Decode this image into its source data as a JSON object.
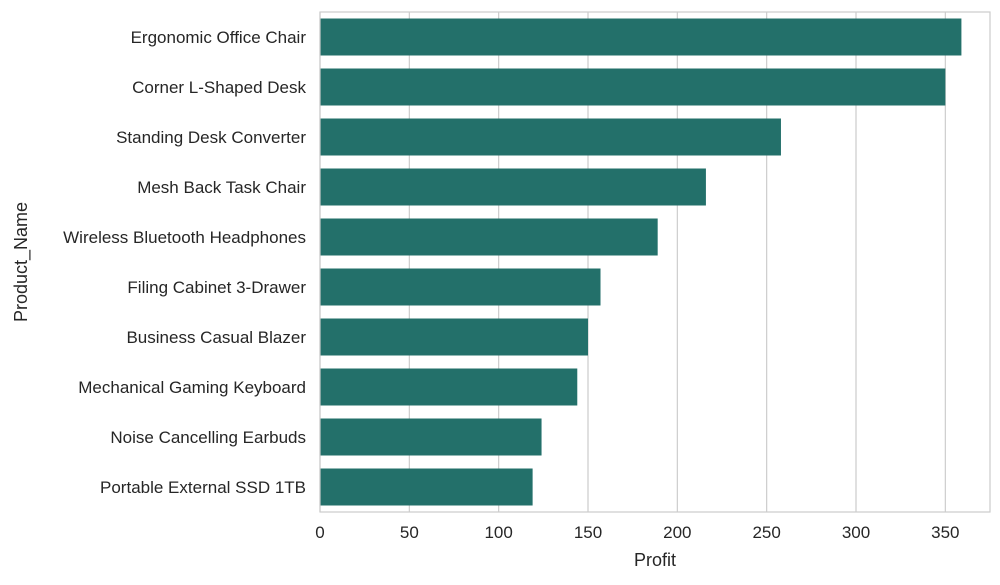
{
  "chart_data": {
    "type": "bar",
    "orientation": "horizontal",
    "title": "",
    "xlabel": "Profit",
    "ylabel": "Product_Name",
    "xlim": [
      0,
      375
    ],
    "xticks": [
      0,
      50,
      100,
      150,
      200,
      250,
      300,
      350
    ],
    "grid": "vertical gridlines on",
    "bar_color": "#23706a",
    "categories": [
      "Ergonomic Office Chair",
      "Corner L-Shaped Desk",
      "Standing Desk Converter",
      "Mesh Back Task Chair",
      "Wireless Bluetooth Headphones",
      "Filing Cabinet 3-Drawer",
      "Business Casual Blazer",
      "Mechanical Gaming Keyboard",
      "Noise Cancelling Earbuds",
      "Portable External SSD 1TB"
    ],
    "values": [
      359,
      350,
      258,
      216,
      189,
      157,
      150,
      144,
      124,
      119
    ]
  }
}
